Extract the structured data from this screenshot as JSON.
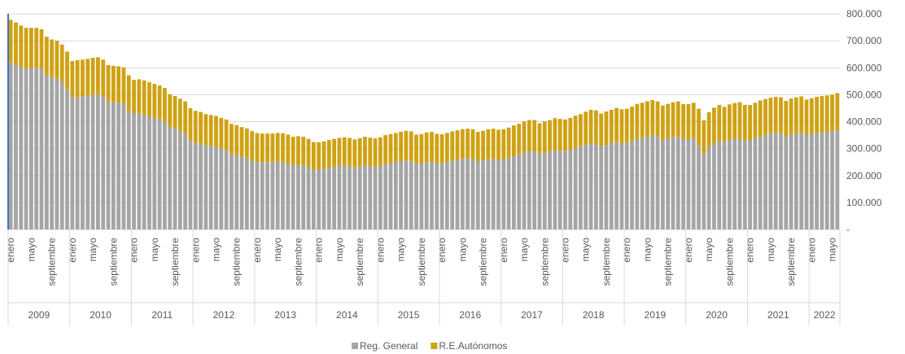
{
  "chart_data": {
    "type": "stacked_bar",
    "categories": [
      "enero",
      null,
      null,
      null,
      "mayo",
      null,
      null,
      null,
      "septiembre",
      null,
      null,
      null,
      "enero",
      null,
      null,
      null,
      "mayo",
      null,
      null,
      null,
      "septiembre",
      null,
      null,
      null,
      "enero",
      null,
      null,
      null,
      "mayo",
      null,
      null,
      null,
      "septiembre",
      null,
      null,
      null,
      "enero",
      null,
      null,
      null,
      "mayo",
      null,
      null,
      null,
      "septiembre",
      null,
      null,
      null,
      "enero",
      null,
      null,
      null,
      "mayo",
      null,
      null,
      null,
      "septiembre",
      null,
      null,
      null,
      "enero",
      null,
      null,
      null,
      "mayo",
      null,
      null,
      null,
      "septiembre",
      null,
      null,
      null,
      "enero",
      null,
      null,
      null,
      "mayo",
      null,
      null,
      null,
      "septiembre",
      null,
      null,
      null,
      "enero",
      null,
      null,
      null,
      "mayo",
      null,
      null,
      null,
      "septiembre",
      null,
      null,
      null,
      "enero",
      null,
      null,
      null,
      "mayo",
      null,
      null,
      null,
      "septiembre",
      null,
      null,
      null,
      "enero",
      null,
      null,
      null,
      "mayo",
      null,
      null,
      null,
      "septiembre",
      null,
      null,
      null,
      "enero",
      null,
      null,
      null,
      "mayo",
      null,
      null,
      null,
      "septiembre",
      null,
      null,
      null,
      "enero",
      null,
      null,
      null,
      "mayo",
      null,
      null,
      null,
      "septiembre",
      null,
      null,
      null,
      "enero",
      null,
      null,
      null,
      "mayo",
      null,
      null,
      null,
      "septiembre",
      null,
      null,
      null,
      "enero",
      null,
      null,
      null,
      "mayo",
      null
    ],
    "years": [
      "2009",
      "2010",
      "2011",
      "2012",
      "2013",
      "2014",
      "2015",
      "2016",
      "2017",
      "2018",
      "2019",
      "2020",
      "2021",
      "2022"
    ],
    "series": [
      {
        "name": "Reg. General",
        "color": "#a5a5a5",
        "values": [
          618000,
          610000,
          602000,
          596000,
          598000,
          600000,
          595000,
          570000,
          565000,
          560000,
          548000,
          520000,
          490000,
          490000,
          493000,
          496000,
          500000,
          502000,
          495000,
          475000,
          472000,
          470000,
          468000,
          440000,
          430000,
          432000,
          425000,
          418000,
          415000,
          408000,
          400000,
          380000,
          375000,
          365000,
          355000,
          330000,
          322000,
          318000,
          312000,
          310000,
          306000,
          300000,
          295000,
          280000,
          275000,
          270000,
          265000,
          255000,
          250000,
          248000,
          250000,
          250000,
          252000,
          250000,
          246000,
          238000,
          240000,
          238000,
          232000,
          220000,
          222000,
          225000,
          228000,
          232000,
          236000,
          238000,
          236000,
          230000,
          235000,
          238000,
          235000,
          232000,
          236000,
          242000,
          246000,
          250000,
          255000,
          256000,
          254000,
          244000,
          246000,
          250000,
          252000,
          245000,
          245000,
          250000,
          254000,
          258000,
          262000,
          264000,
          262000,
          252000,
          256000,
          260000,
          262000,
          258000,
          260000,
          266000,
          272000,
          278000,
          285000,
          290000,
          290000,
          280000,
          285000,
          290000,
          295000,
          292000,
          292000,
          296000,
          302000,
          308000,
          315000,
          320000,
          318000,
          308000,
          314000,
          320000,
          325000,
          320000,
          322000,
          328000,
          336000,
          340000,
          346000,
          350000,
          345000,
          332000,
          338000,
          342000,
          345000,
          335000,
          335000,
          340000,
          310000,
          280000,
          305000,
          320000,
          330000,
          325000,
          332000,
          335000,
          338000,
          330000,
          332000,
          338000,
          345000,
          350000,
          355000,
          358000,
          356000,
          345000,
          352000,
          356000,
          360000,
          350000,
          355000,
          358000,
          360000,
          362000,
          364000,
          368000
        ]
      },
      {
        "name": "R.E.Autónomos",
        "color": "#cfa213",
        "values": [
          160000,
          158000,
          155000,
          152000,
          150000,
          148000,
          148000,
          145000,
          140000,
          140000,
          138000,
          140000,
          135000,
          138000,
          137000,
          137000,
          137000,
          137000,
          135000,
          135000,
          135000,
          135000,
          133000,
          132000,
          125000,
          125000,
          128000,
          128000,
          125000,
          126000,
          125000,
          122000,
          120000,
          120000,
          120000,
          120000,
          118000,
          118000,
          116000,
          115000,
          115000,
          114000,
          113000,
          112000,
          112000,
          110000,
          110000,
          110000,
          108000,
          108000,
          106000,
          106000,
          106000,
          107000,
          106000,
          106000,
          106000,
          106000,
          104000,
          104000,
          102000,
          102000,
          104000,
          104000,
          104000,
          104000,
          104000,
          104000,
          104000,
          106000,
          106000,
          106000,
          106000,
          108000,
          108000,
          108000,
          108000,
          110000,
          110000,
          108000,
          108000,
          110000,
          110000,
          110000,
          108000,
          108000,
          110000,
          110000,
          110000,
          110000,
          110000,
          110000,
          110000,
          112000,
          112000,
          112000,
          112000,
          112000,
          114000,
          114000,
          116000,
          116000,
          116000,
          114000,
          116000,
          116000,
          118000,
          118000,
          116000,
          118000,
          120000,
          120000,
          122000,
          124000,
          124000,
          122000,
          124000,
          124000,
          126000,
          126000,
          126000,
          128000,
          130000,
          130000,
          130000,
          130000,
          130000,
          128000,
          128000,
          130000,
          130000,
          130000,
          130000,
          130000,
          138000,
          125000,
          130000,
          132000,
          132000,
          130000,
          132000,
          134000,
          134000,
          132000,
          130000,
          132000,
          134000,
          134000,
          134000,
          134000,
          134000,
          132000,
          134000,
          134000,
          134000,
          132000,
          132000,
          134000,
          135000,
          135000,
          136000,
          138000
        ]
      }
    ],
    "ylim": [
      0,
      800000
    ],
    "yticks": [
      {
        "value": 0,
        "label": "-"
      },
      {
        "value": 100000,
        "label": "100.000"
      },
      {
        "value": 200000,
        "label": "200.000"
      },
      {
        "value": 300000,
        "label": "300.000"
      },
      {
        "value": 400000,
        "label": "400.000"
      },
      {
        "value": 500000,
        "label": "500.000"
      },
      {
        "value": 600000,
        "label": "600.000"
      },
      {
        "value": 700000,
        "label": "700.000"
      },
      {
        "value": 800000,
        "label": "800.000"
      }
    ],
    "grid": true
  }
}
